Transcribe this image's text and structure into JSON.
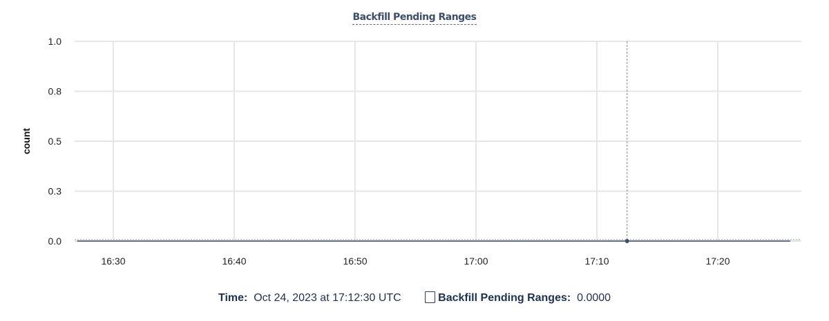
{
  "chart_data": {
    "type": "line",
    "title": "Backfill Pending Ranges",
    "ylabel": "count",
    "xlabel": "",
    "ylim": [
      0,
      1
    ],
    "yticks": [
      0,
      0.25,
      0.5,
      0.75,
      1
    ],
    "ytick_labels": [
      "0.0",
      "0.3",
      "0.5",
      "0.8",
      "1.0"
    ],
    "xticks": [
      "16:30",
      "16:40",
      "16:50",
      "17:00",
      "17:10",
      "17:20"
    ],
    "xlim": [
      "16:26:48",
      "17:26:00"
    ],
    "grid": true,
    "series": [
      {
        "name": "Backfill Pending Ranges",
        "color": "#3d4f6a",
        "x": [
          "16:27",
          "17:26"
        ],
        "y": [
          0,
          0
        ]
      }
    ],
    "cursor": {
      "x": "17:12:30",
      "y": 0
    }
  },
  "legend": {
    "time_label": "Time:",
    "time_value": "Oct 24, 2023 at 17:12:30 UTC",
    "series_label": "Backfill Pending Ranges:",
    "series_value": "0.0000"
  }
}
